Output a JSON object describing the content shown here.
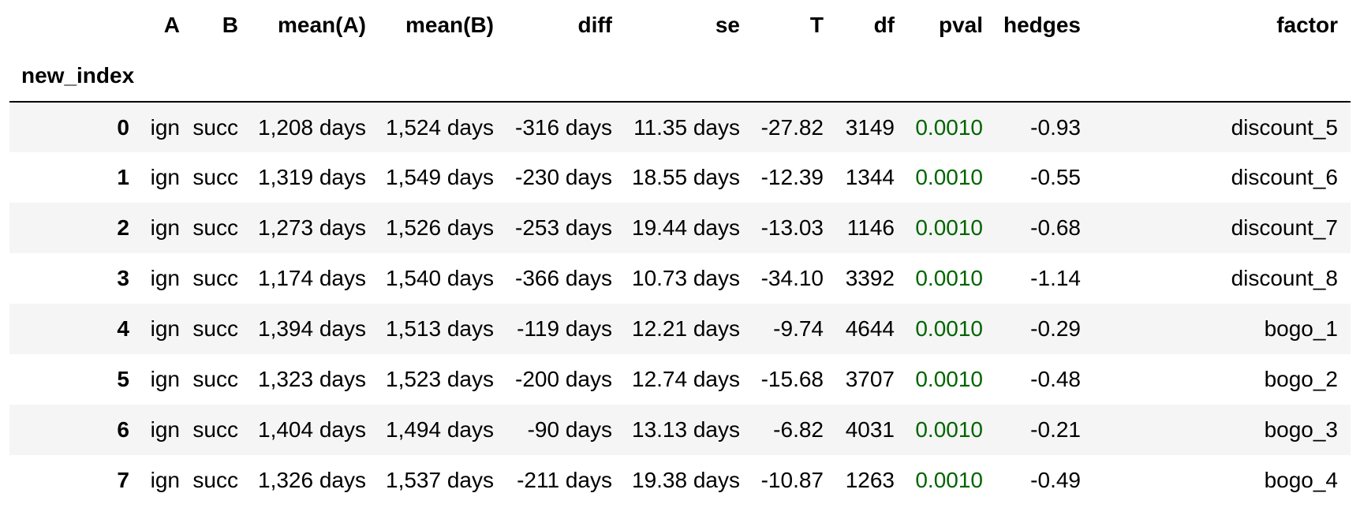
{
  "table": {
    "index_name": "new_index",
    "columns": [
      "A",
      "B",
      "mean(A)",
      "mean(B)",
      "diff",
      "se",
      "T",
      "df",
      "pval",
      "hedges",
      "factor"
    ],
    "rows": [
      {
        "index": "0",
        "A": "ign",
        "B": "succ",
        "meanA": "1,208 days",
        "meanB": "1,524 days",
        "diff": "-316 days",
        "se": "11.35 days",
        "T": "-27.82",
        "df": "3149",
        "pval": "0.0010",
        "hedges": "-0.93",
        "factor": "discount_5"
      },
      {
        "index": "1",
        "A": "ign",
        "B": "succ",
        "meanA": "1,319 days",
        "meanB": "1,549 days",
        "diff": "-230 days",
        "se": "18.55 days",
        "T": "-12.39",
        "df": "1344",
        "pval": "0.0010",
        "hedges": "-0.55",
        "factor": "discount_6"
      },
      {
        "index": "2",
        "A": "ign",
        "B": "succ",
        "meanA": "1,273 days",
        "meanB": "1,526 days",
        "diff": "-253 days",
        "se": "19.44 days",
        "T": "-13.03",
        "df": "1146",
        "pval": "0.0010",
        "hedges": "-0.68",
        "factor": "discount_7"
      },
      {
        "index": "3",
        "A": "ign",
        "B": "succ",
        "meanA": "1,174 days",
        "meanB": "1,540 days",
        "diff": "-366 days",
        "se": "10.73 days",
        "T": "-34.10",
        "df": "3392",
        "pval": "0.0010",
        "hedges": "-1.14",
        "factor": "discount_8"
      },
      {
        "index": "4",
        "A": "ign",
        "B": "succ",
        "meanA": "1,394 days",
        "meanB": "1,513 days",
        "diff": "-119 days",
        "se": "12.21 days",
        "T": "-9.74",
        "df": "4644",
        "pval": "0.0010",
        "hedges": "-0.29",
        "factor": "bogo_1"
      },
      {
        "index": "5",
        "A": "ign",
        "B": "succ",
        "meanA": "1,323 days",
        "meanB": "1,523 days",
        "diff": "-200 days",
        "se": "12.74 days",
        "T": "-15.68",
        "df": "3707",
        "pval": "0.0010",
        "hedges": "-0.48",
        "factor": "bogo_2"
      },
      {
        "index": "6",
        "A": "ign",
        "B": "succ",
        "meanA": "1,404 days",
        "meanB": "1,494 days",
        "diff": "-90 days",
        "se": "13.13 days",
        "T": "-6.82",
        "df": "4031",
        "pval": "0.0010",
        "hedges": "-0.21",
        "factor": "bogo_3"
      },
      {
        "index": "7",
        "A": "ign",
        "B": "succ",
        "meanA": "1,326 days",
        "meanB": "1,537 days",
        "diff": "-211 days",
        "se": "19.38 days",
        "T": "-10.87",
        "df": "1263",
        "pval": "0.0010",
        "hedges": "-0.49",
        "factor": "bogo_4"
      }
    ],
    "colors": {
      "pval_text": "#006400",
      "striped_row": "#f5f5f5"
    }
  }
}
